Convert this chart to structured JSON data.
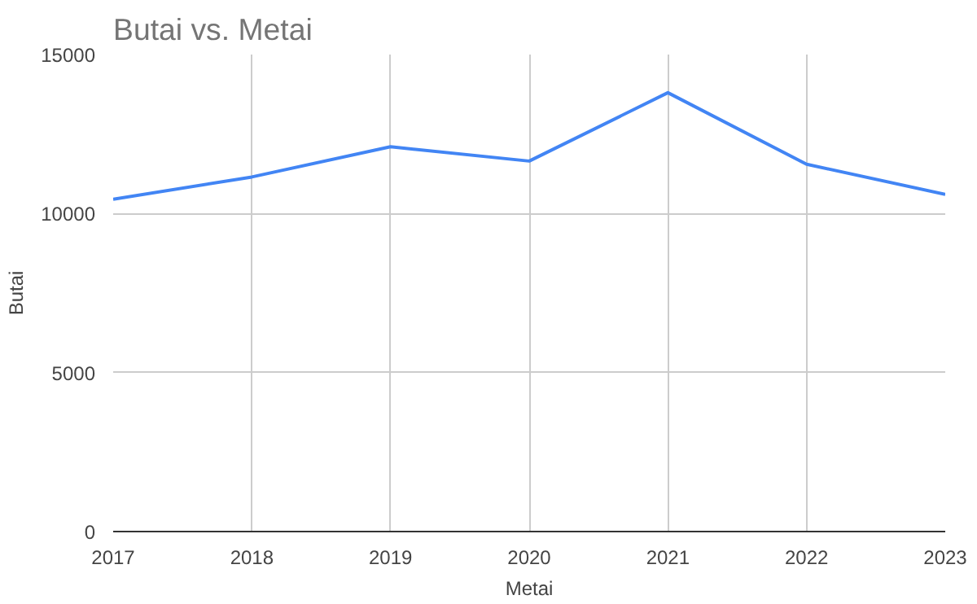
{
  "chart_data": {
    "type": "line",
    "title": "Butai vs. Metai",
    "xlabel": "Metai",
    "ylabel": "Butai",
    "x": [
      2017,
      2018,
      2019,
      2020,
      2021,
      2022,
      2023
    ],
    "series": [
      {
        "color": "#4285f4",
        "values": [
          10450,
          11150,
          12100,
          11650,
          13800,
          11550,
          10600
        ]
      }
    ],
    "xlim": [
      2017,
      2023
    ],
    "xticks": [
      2017,
      2018,
      2019,
      2020,
      2021,
      2022,
      2023
    ],
    "ylim": [
      0,
      15000
    ],
    "yticks": [
      0,
      5000,
      10000,
      15000
    ],
    "grid": true
  }
}
